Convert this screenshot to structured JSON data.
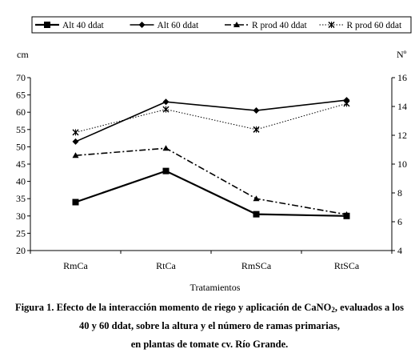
{
  "caption": {
    "line1_pre": "Figura 1. Efecto de la interacción momento de riego y aplicación de CaNO",
    "line1_sub": "2",
    "line1_post": ", evaluados a los",
    "line2": "40 y 60 ddat, sobre la altura y el número de ramas primarias,",
    "line3": "en plantas de tomate cv. Río Grande."
  },
  "chart_data": {
    "type": "line",
    "categories": [
      "RmCa",
      "RtCa",
      "RmSCa",
      "RtSCa"
    ],
    "xlabel": "Tratamientos",
    "ylabel_left": "cm",
    "ylabel_right": "Nº",
    "ylim_left": [
      20,
      70
    ],
    "yticks_left": [
      20,
      25,
      30,
      35,
      40,
      45,
      50,
      55,
      60,
      65,
      70
    ],
    "ylim_right": [
      4,
      16
    ],
    "yticks_right": [
      4,
      6,
      8,
      10,
      12,
      14,
      16
    ],
    "grid": false,
    "legend_position": "top",
    "series": [
      {
        "name": "Alt 40 ddat",
        "axis": "left",
        "values": [
          34,
          43,
          30.5,
          30
        ],
        "marker": "square",
        "line_style": "solid-thick",
        "color": "#000000"
      },
      {
        "name": "Alt 60 ddat",
        "axis": "left",
        "values": [
          51.5,
          63,
          60.5,
          63.5
        ],
        "marker": "diamond",
        "line_style": "solid",
        "color": "#000000"
      },
      {
        "name": "R prod 40 ddat",
        "axis": "right",
        "values": [
          10.6,
          11.1,
          7.6,
          6.5
        ],
        "marker": "triangle",
        "line_style": "dash-dot",
        "color": "#000000"
      },
      {
        "name": "R prod 60 ddat",
        "axis": "right",
        "values": [
          12.2,
          13.8,
          12.4,
          14.2
        ],
        "marker": "star",
        "line_style": "dotted",
        "color": "#000000"
      }
    ]
  }
}
